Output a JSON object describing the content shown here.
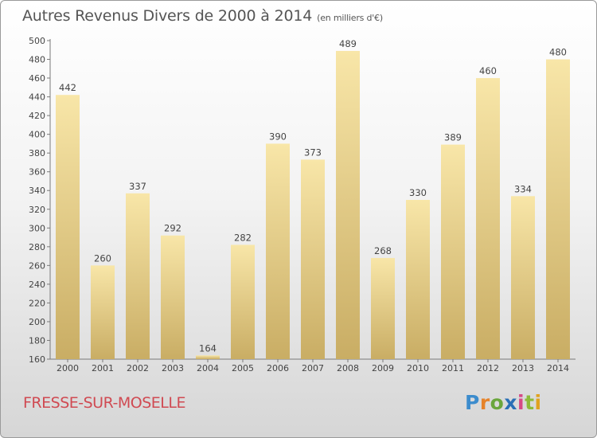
{
  "header": {
    "title": "Autres Revenus Divers de 2000 à 2014",
    "unit": "(en milliers d'€)"
  },
  "footer": {
    "place": "FRESSE-SUR-MOSELLE"
  },
  "logo": {
    "text": "Proxiti",
    "letters": [
      "P",
      "r",
      "o",
      "x",
      "i",
      "t",
      "i"
    ],
    "colors": [
      "#3c8ccd",
      "#e6832a",
      "#6aa63c",
      "#2a6fb6",
      "#d64a86",
      "#8dbb3a",
      "#e0a21e"
    ]
  },
  "colors": {
    "bar_light": "#f8e6a8",
    "bar_dark": "#c9ad64",
    "text": "#444444",
    "accent": "#d04a52"
  },
  "chart_data": {
    "type": "bar",
    "categories": [
      "2000",
      "2001",
      "2002",
      "2003",
      "2004",
      "2005",
      "2006",
      "2007",
      "2008",
      "2009",
      "2010",
      "2011",
      "2012",
      "2013",
      "2014"
    ],
    "values": [
      442,
      260,
      337,
      292,
      164,
      282,
      390,
      373,
      489,
      268,
      330,
      389,
      460,
      334,
      480
    ],
    "ylim": [
      160,
      500
    ],
    "yticks": [
      160,
      180,
      200,
      220,
      240,
      260,
      280,
      300,
      320,
      340,
      360,
      380,
      400,
      420,
      440,
      460,
      480,
      500
    ],
    "grid": false,
    "legend": "none"
  }
}
